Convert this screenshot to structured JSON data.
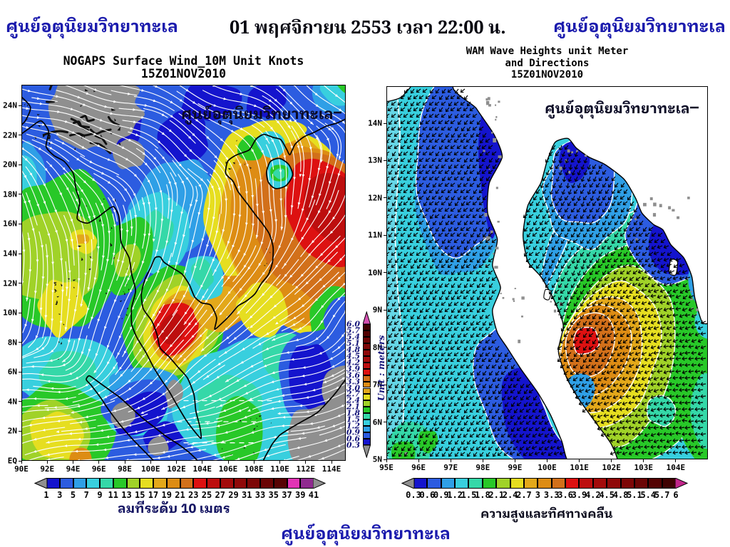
{
  "header": {
    "agency_left": "ศูนย์อุตุนิยมวิทยาทะเล",
    "datetime": "01 พฤศจิกายน 2553 เวลา 22:00 น.",
    "agency_right": "ศูนย์อุตุนิยมวิทยาทะเล"
  },
  "left_map": {
    "title_line1": "NOGAPS Surface Wind_10M Unit Knots",
    "title_line2": "15Z01NOV2010",
    "watermark": "ศูนย์อุตุนิยมวิทยาทะเล",
    "x_axis_labels": [
      "90E",
      "92E",
      "94E",
      "96E",
      "98E",
      "100E",
      "102E",
      "104E",
      "106E",
      "108E",
      "110E",
      "112E",
      "114E"
    ],
    "y_axis_labels": [
      "EQ",
      "2N",
      "4N",
      "6N",
      "8N",
      "10N",
      "12N",
      "14N",
      "16N",
      "18N",
      "20N",
      "22N",
      "24N"
    ],
    "legend": {
      "values": [
        "1",
        "3",
        "5",
        "7",
        "9",
        "11",
        "13",
        "15",
        "17",
        "19",
        "21",
        "23",
        "25",
        "27",
        "29",
        "31",
        "33",
        "35",
        "37",
        "39",
        "41"
      ],
      "colors": [
        "#1414cd",
        "#2c5ce0",
        "#2f9fe6",
        "#38cfde",
        "#35d8a8",
        "#28c828",
        "#a0d228",
        "#e6de20",
        "#e3a81a",
        "#dd8c14",
        "#d2701a",
        "#dd1111",
        "#bd0e0e",
        "#a30b0b",
        "#8f0909",
        "#7d0707",
        "#6b0505",
        "#570303",
        "#e233b5",
        "#8f2a8f"
      ],
      "below_color": "#8f8f8f",
      "above_color": "#8f8f8f",
      "label": "ลมที่ระดับ 10 เมตร"
    }
  },
  "right_map": {
    "title_line1": "WAM Wave Heights unit Meter",
    "title_line2": "and Directions",
    "title_line3": "15Z01NOV2010",
    "watermark": "ศูนย์อุตุนิยมวิทยาทะเล",
    "x_axis_labels": [
      "95E",
      "96E",
      "97E",
      "98E",
      "99E",
      "100E",
      "101E",
      "102E",
      "103E",
      "104E"
    ],
    "y_axis_labels": [
      "5N",
      "6N",
      "7N",
      "8N",
      "9N",
      "10N",
      "11N",
      "12N",
      "13N",
      "14N"
    ],
    "legend": {
      "values": [
        "0.3",
        "0.6",
        "0.9",
        "1.2",
        "1.5",
        "1.8",
        "2.1",
        "2.4",
        "2.7",
        "3",
        "3.3",
        "3.6",
        "3.9",
        "4.2",
        "4.5",
        "4.8",
        "5.1",
        "5.4",
        "5.7",
        "6"
      ],
      "colors": [
        "#1414cd",
        "#2c5ce0",
        "#2f9fe6",
        "#38cfde",
        "#35d8a8",
        "#28c828",
        "#a0d228",
        "#e6de20",
        "#e3a81a",
        "#dd8c14",
        "#d2701a",
        "#dd1111",
        "#bd0e0e",
        "#a30b0b",
        "#8f0909",
        "#7d0707",
        "#6b0505",
        "#530303",
        "#3f0202"
      ],
      "below_color": "#8f8f8f",
      "above_color": "#c2268b",
      "label": "ความสูงและทิศทางคลื่น"
    },
    "scale_bar": {
      "values": [
        "6.0",
        "5.7",
        "5.4",
        "5.1",
        "4.8",
        "4.5",
        "4.2",
        "3.9",
        "3.6",
        "3.3",
        "3.0",
        "2.7",
        "2.4",
        "2.1",
        "1.8",
        "1.5",
        "1.2",
        "0.9",
        "0.6",
        "0.3"
      ],
      "colors": [
        "#1414cd",
        "#2c5ce0",
        "#2f9fe6",
        "#38cfde",
        "#35d8a8",
        "#28c828",
        "#a0d228",
        "#e6de20",
        "#e3a81a",
        "#dd8c14",
        "#d2701a",
        "#dd1111",
        "#bd0e0e",
        "#a30b0b",
        "#8f0909",
        "#7d0707",
        "#6b0505",
        "#530303",
        "#3f0202"
      ],
      "unit_label": "Unit : meters",
      "top_arrow_color": "#d550b2",
      "bottom_arrow_color": "#8f8f8f"
    }
  },
  "footer": {
    "agency": "ศูนย์อุตุนิยมวิทยาทะเล"
  }
}
